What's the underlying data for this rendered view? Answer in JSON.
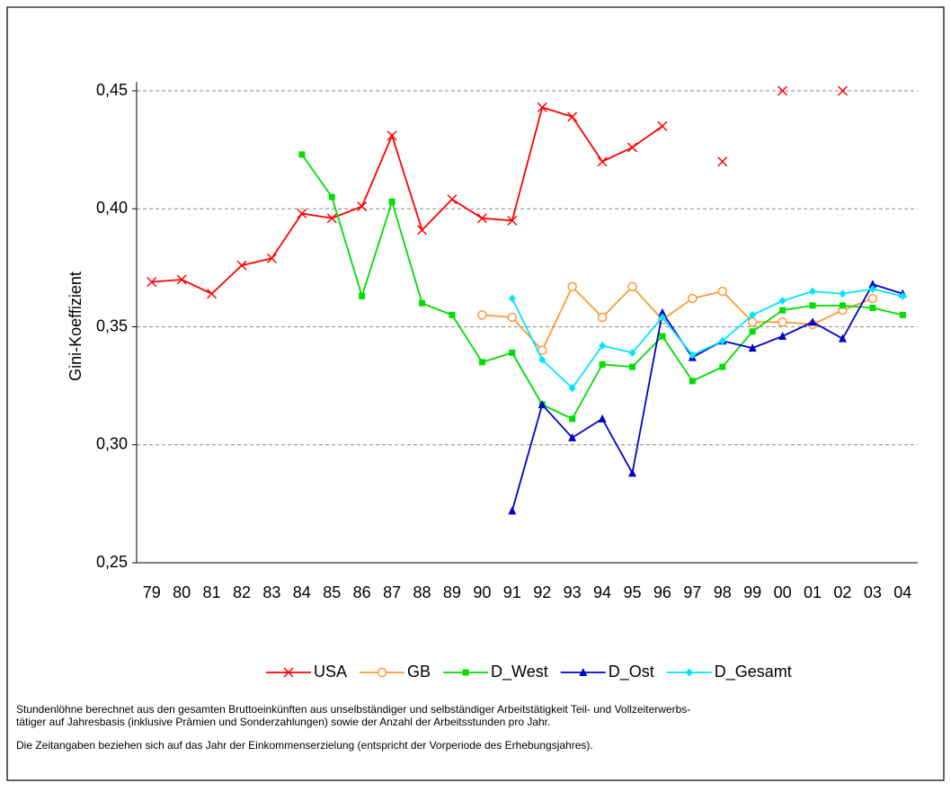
{
  "chart_data": {
    "type": "line",
    "y_label": "Gini-Koeffizient",
    "categories": [
      "79",
      "80",
      "81",
      "82",
      "83",
      "84",
      "85",
      "86",
      "87",
      "88",
      "89",
      "90",
      "91",
      "92",
      "93",
      "94",
      "95",
      "96",
      "97",
      "98",
      "99",
      "00",
      "01",
      "02",
      "03",
      "04"
    ],
    "ylim": [
      0.25,
      0.45
    ],
    "yticks": [
      {
        "value": 0.25,
        "label": "0,25"
      },
      {
        "value": 0.3,
        "label": "0,30"
      },
      {
        "value": 0.35,
        "label": "0,35"
      },
      {
        "value": 0.4,
        "label": "0,40"
      },
      {
        "value": 0.45,
        "label": "0,45"
      }
    ],
    "grid": true,
    "legend": "bottom",
    "series": [
      {
        "name": "USA",
        "color": "#ff0000",
        "marker": "x",
        "values": [
          0.369,
          0.37,
          0.364,
          0.376,
          0.379,
          0.398,
          0.396,
          0.401,
          0.431,
          0.391,
          0.404,
          0.396,
          0.395,
          0.443,
          0.439,
          0.42,
          0.426,
          0.435,
          null,
          0.42,
          null,
          0.45,
          null,
          0.45,
          null,
          null
        ]
      },
      {
        "name": "GB",
        "color": "#ff9933",
        "marker": "circle",
        "values": [
          null,
          null,
          null,
          null,
          null,
          null,
          null,
          null,
          null,
          null,
          null,
          0.355,
          0.354,
          0.34,
          0.367,
          0.354,
          0.367,
          0.353,
          0.362,
          0.365,
          0.352,
          0.352,
          0.351,
          0.357,
          0.362,
          null
        ]
      },
      {
        "name": "D_West",
        "color": "#00dd00",
        "marker": "square",
        "values": [
          null,
          null,
          null,
          null,
          null,
          0.423,
          0.405,
          0.363,
          0.403,
          0.36,
          0.355,
          0.335,
          0.339,
          0.317,
          0.311,
          0.334,
          0.333,
          0.346,
          0.327,
          0.333,
          0.348,
          0.357,
          0.359,
          0.359,
          0.358,
          0.355
        ]
      },
      {
        "name": "D_Ost",
        "color": "#0000cc",
        "marker": "triangle",
        "values": [
          null,
          null,
          null,
          null,
          null,
          null,
          null,
          null,
          null,
          null,
          null,
          null,
          0.272,
          0.317,
          0.303,
          0.311,
          0.288,
          0.356,
          0.337,
          0.344,
          0.341,
          0.346,
          0.352,
          0.345,
          0.368,
          0.364
        ]
      },
      {
        "name": "D_Gesamt",
        "color": "#00e5ff",
        "marker": "diamond",
        "values": [
          null,
          null,
          null,
          null,
          null,
          null,
          null,
          null,
          null,
          null,
          null,
          null,
          0.362,
          0.336,
          0.324,
          0.342,
          0.339,
          0.354,
          0.338,
          0.344,
          0.355,
          0.361,
          0.365,
          0.364,
          0.366,
          0.363
        ]
      }
    ],
    "notes": [
      "Stundenlöhne berechnet aus den gesamten Bruttoeinkünften aus unselbständiger und selbständiger Arbeitstätigkeit Teil- und Vollzeiterwerbs-",
      "tätiger auf Jahresbasis (inklusive Prämien und Sonderzahlungen) sowie der Anzahl der Arbeitsstunden pro Jahr.",
      "Die Zeitangaben beziehen sich auf das Jahr der Einkommenserzielung (entspricht der Vorperiode des Erhebungsjahres)."
    ]
  }
}
